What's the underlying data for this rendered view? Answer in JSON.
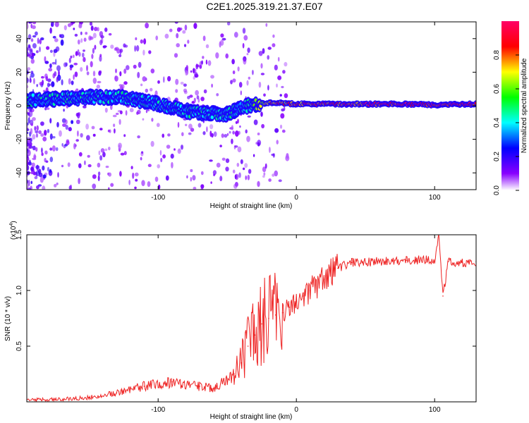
{
  "title": "C2E1.2025.319.21.37.E07",
  "chart_data": [
    {
      "type": "heatmap",
      "xlabel": "Height of straight line (km)",
      "ylabel": "Frequency (Hz)",
      "xlim": [
        -195,
        130
      ],
      "ylim": [
        -50,
        50
      ],
      "x_ticks": [
        -100,
        0,
        100
      ],
      "y_ticks": [
        -40,
        -20,
        0,
        20,
        40
      ],
      "colorbar": {
        "label": "Normalized spectral amplitude",
        "range": [
          0.0,
          1.0
        ],
        "ticks": [
          0.0,
          0.2,
          0.4,
          0.6,
          0.8
        ],
        "tick_labels": [
          "0.0",
          "0.2",
          "0.4",
          "0.6",
          "0.8"
        ]
      },
      "ridge": [
        {
          "x": -175,
          "f": 4,
          "a": 0.45
        },
        {
          "x": -150,
          "f": 5,
          "a": 0.45
        },
        {
          "x": -125,
          "f": 5,
          "a": 0.45
        },
        {
          "x": -100,
          "f": 1,
          "a": 0.45
        },
        {
          "x": -75,
          "f": -4,
          "a": 0.45
        },
        {
          "x": -50,
          "f": -5,
          "a": 0.45
        },
        {
          "x": -35,
          "f": 0,
          "a": 0.45
        },
        {
          "x": -20,
          "f": 2,
          "a": 0.8
        },
        {
          "x": 0,
          "f": 1,
          "a": 0.85
        },
        {
          "x": 40,
          "f": 1,
          "a": 0.9
        },
        {
          "x": 80,
          "f": 1,
          "a": 0.95
        },
        {
          "x": 100,
          "f": 0.5,
          "a": 0.95
        },
        {
          "x": 130,
          "f": 1,
          "a": 0.95
        }
      ]
    },
    {
      "type": "line",
      "xlabel": "Height of straight line (km)",
      "ylabel": "SNR (10 * v/v)",
      "multiplier_label": "(x10",
      "multiplier_exp": "4",
      "xlim": [
        -195,
        130
      ],
      "ylim": [
        0,
        1.5
      ],
      "x_ticks": [
        -100,
        0,
        100
      ],
      "y_ticks": [
        0.5,
        1.0,
        1.5
      ],
      "y_tick_labels": [
        "0.5",
        "1.0",
        "1.5"
      ],
      "series": [
        {
          "name": "SNR",
          "color": "#ee2222",
          "x": [
            -195,
            -180,
            -160,
            -150,
            -130,
            -110,
            -90,
            -70,
            -60,
            -45,
            -40,
            -35,
            -30,
            -25,
            -20,
            -15,
            -10,
            -5,
            0,
            5,
            10,
            20,
            30,
            40,
            60,
            80,
            95,
            100,
            103,
            106,
            110,
            120,
            130
          ],
          "y": [
            0.02,
            0.02,
            0.03,
            0.04,
            0.08,
            0.14,
            0.18,
            0.14,
            0.12,
            0.25,
            0.35,
            0.5,
            0.6,
            0.7,
            0.75,
            0.78,
            0.8,
            0.85,
            0.9,
            0.95,
            1.0,
            1.1,
            1.2,
            1.25,
            1.26,
            1.27,
            1.28,
            1.25,
            1.5,
            0.95,
            1.26,
            1.25,
            1.26
          ]
        }
      ]
    }
  ]
}
